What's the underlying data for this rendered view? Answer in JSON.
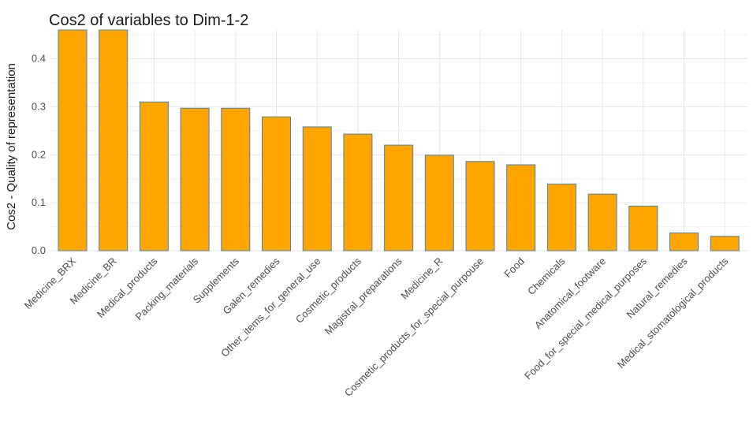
{
  "chart_data": {
    "type": "bar",
    "title": "Cos2 of variables to Dim-1-2",
    "xlabel": "",
    "ylabel": "Cos2 - Quality of representation",
    "ylim": [
      0,
      0.46
    ],
    "yticks": [
      0.0,
      0.1,
      0.2,
      0.3,
      0.4
    ],
    "ytick_labels": [
      "0.0",
      "0.1",
      "0.2",
      "0.3",
      "0.4"
    ],
    "grid": true,
    "bar_fill": "#FFA500",
    "bar_stroke": "#4682B4",
    "categories": [
      "Medicine_BRX",
      "Medicine_BR",
      "Medical_products",
      "Packing_materials",
      "Supplements",
      "Galen_remedies",
      "Other_items_for_general_use",
      "Cosmetic_products",
      "Magistral_preparations",
      "Medicine_R",
      "Cosmetic_products_for_special_purpouse",
      "Food",
      "Chemicals",
      "Anatomical_footware",
      "Food_for_special_medical_purposes",
      "Natural_remedies",
      "Medical_stomatological_products"
    ],
    "values": [
      0.46,
      0.46,
      0.31,
      0.297,
      0.297,
      0.279,
      0.258,
      0.243,
      0.22,
      0.199,
      0.186,
      0.179,
      0.139,
      0.118,
      0.093,
      0.037,
      0.03
    ]
  }
}
